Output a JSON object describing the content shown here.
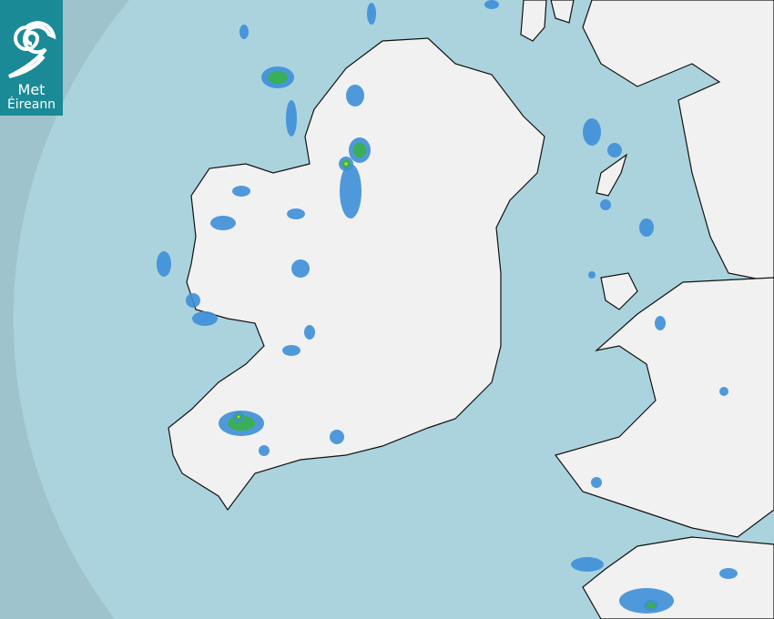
{
  "logo": {
    "line1": "Met",
    "line2": "Éireann",
    "color": "#1a8a96"
  },
  "map": {
    "colors": {
      "outside_coverage": "#9fc3cd",
      "sea": "#abd3de",
      "land": "#f2f2f2",
      "rain_light": "#3d8fd8",
      "rain_moderate": "#3ab04a",
      "rain_heavy": "#e8e030"
    }
  }
}
